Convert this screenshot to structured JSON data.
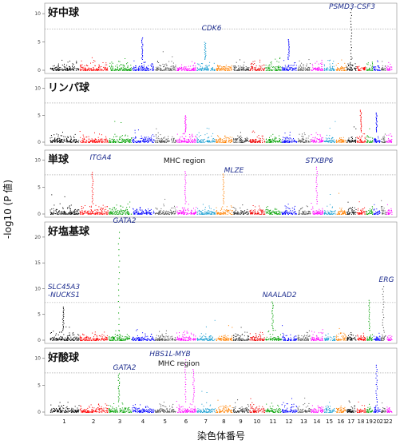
{
  "chart_data": {
    "type": "scatter",
    "subtype": "manhattan",
    "ylabel": "-log10 (P 値)",
    "xlabel": "染色体番号",
    "x_ticks": [
      "1",
      "2",
      "3",
      "4",
      "5",
      "6",
      "7",
      "8",
      "9",
      "10",
      "11",
      "12",
      "13",
      "14",
      "15",
      "16",
      "17",
      "18",
      "19",
      "20",
      "21",
      "22"
    ],
    "chromosomes": [
      {
        "chr": "1",
        "color": "#000000"
      },
      {
        "chr": "2",
        "color": "#ff0000"
      },
      {
        "chr": "3",
        "color": "#00a000"
      },
      {
        "chr": "4",
        "color": "#0000ff"
      },
      {
        "chr": "5",
        "color": "#555555"
      },
      {
        "chr": "6",
        "color": "#ff00ff"
      },
      {
        "chr": "7",
        "color": "#1ea0d2"
      },
      {
        "chr": "8",
        "color": "#ff8000"
      },
      {
        "chr": "9",
        "color": "#333333"
      },
      {
        "chr": "10",
        "color": "#ee0000"
      },
      {
        "chr": "11",
        "color": "#00a000"
      },
      {
        "chr": "12",
        "color": "#0000ff"
      },
      {
        "chr": "13",
        "color": "#555555"
      },
      {
        "chr": "14",
        "color": "#ff00ff"
      },
      {
        "chr": "15",
        "color": "#1ea0d2"
      },
      {
        "chr": "16",
        "color": "#ff8000"
      },
      {
        "chr": "17",
        "color": "#000000"
      },
      {
        "chr": "18",
        "color": "#ff0000"
      },
      {
        "chr": "19",
        "color": "#00a000"
      },
      {
        "chr": "20",
        "color": "#0000ff"
      },
      {
        "chr": "21",
        "color": "#555555"
      },
      {
        "chr": "22",
        "color": "#ff00ff"
      }
    ],
    "panels": [
      {
        "title": "好中球",
        "ylim": [
          0,
          11
        ],
        "yticks": [
          0,
          5,
          10
        ],
        "threshold": 7.3,
        "annotations": [
          {
            "label": "CDK6",
            "chr": "7",
            "italic": true
          },
          {
            "label": "PSMD3-CSF3",
            "chr": "17",
            "italic": true
          }
        ],
        "peaks": [
          {
            "chr": "17",
            "y": 10.8
          },
          {
            "chr": "7",
            "y": 5.0
          },
          {
            "chr": "4",
            "y": 5.8
          },
          {
            "chr": "12",
            "y": 5.5
          }
        ]
      },
      {
        "title": "リンパ球",
        "ylim": [
          0,
          11
        ],
        "yticks": [
          0,
          5,
          10
        ],
        "threshold": 7.3,
        "annotations": [],
        "peaks": [
          {
            "chr": "18",
            "y": 6.0
          },
          {
            "chr": "20",
            "y": 5.5
          },
          {
            "chr": "6",
            "y": 5.0
          }
        ]
      },
      {
        "title": "単球",
        "ylim": [
          0,
          11
        ],
        "yticks": [
          0,
          5,
          10
        ],
        "threshold": 7.3,
        "annotations": [
          {
            "label": "ITGA4",
            "chr": "2",
            "italic": true
          },
          {
            "label": "MHC region",
            "chr": "6",
            "italic": false
          },
          {
            "label": "MLZE",
            "chr": "8",
            "italic": true
          },
          {
            "label": "STXBP6",
            "chr": "14",
            "italic": true
          }
        ],
        "peaks": [
          {
            "chr": "2",
            "y": 7.8
          },
          {
            "chr": "6",
            "y": 8.0
          },
          {
            "chr": "8",
            "y": 7.5
          },
          {
            "chr": "14",
            "y": 8.8
          }
        ]
      },
      {
        "title": "好塩基球",
        "ylim": [
          0,
          22
        ],
        "yticks": [
          0,
          5,
          10,
          15,
          20
        ],
        "threshold": 7.3,
        "annotations": [
          {
            "label": "GATA2",
            "chr": "3",
            "italic": true
          },
          {
            "label": "SLC45A3\n-NUCKS1",
            "chr": "1",
            "italic": true
          },
          {
            "label": "NAALAD2",
            "chr": "11",
            "italic": true
          },
          {
            "label": "ERG",
            "chr": "21",
            "italic": true
          }
        ],
        "peaks": [
          {
            "chr": "3",
            "y": 21.0
          },
          {
            "chr": "1",
            "y": 6.5
          },
          {
            "chr": "11",
            "y": 7.5
          },
          {
            "chr": "21",
            "y": 10.5
          },
          {
            "chr": "19",
            "y": 7.8
          }
        ]
      },
      {
        "title": "好酸球",
        "ylim": [
          0,
          11
        ],
        "yticks": [
          0,
          5,
          10
        ],
        "threshold": 7.3,
        "annotations": [
          {
            "label": "GATA2",
            "chr": "3",
            "italic": true
          },
          {
            "label": "HBS1L-MYB",
            "chr": "6",
            "italic": true
          },
          {
            "label": "MHC region",
            "chr": "6",
            "italic": false
          }
        ],
        "peaks": [
          {
            "chr": "3",
            "y": 7.2
          },
          {
            "chr": "6",
            "y": 9.8
          },
          {
            "chr": "6b",
            "y": 8.0
          },
          {
            "chr": "20",
            "y": 8.8
          }
        ]
      }
    ]
  }
}
